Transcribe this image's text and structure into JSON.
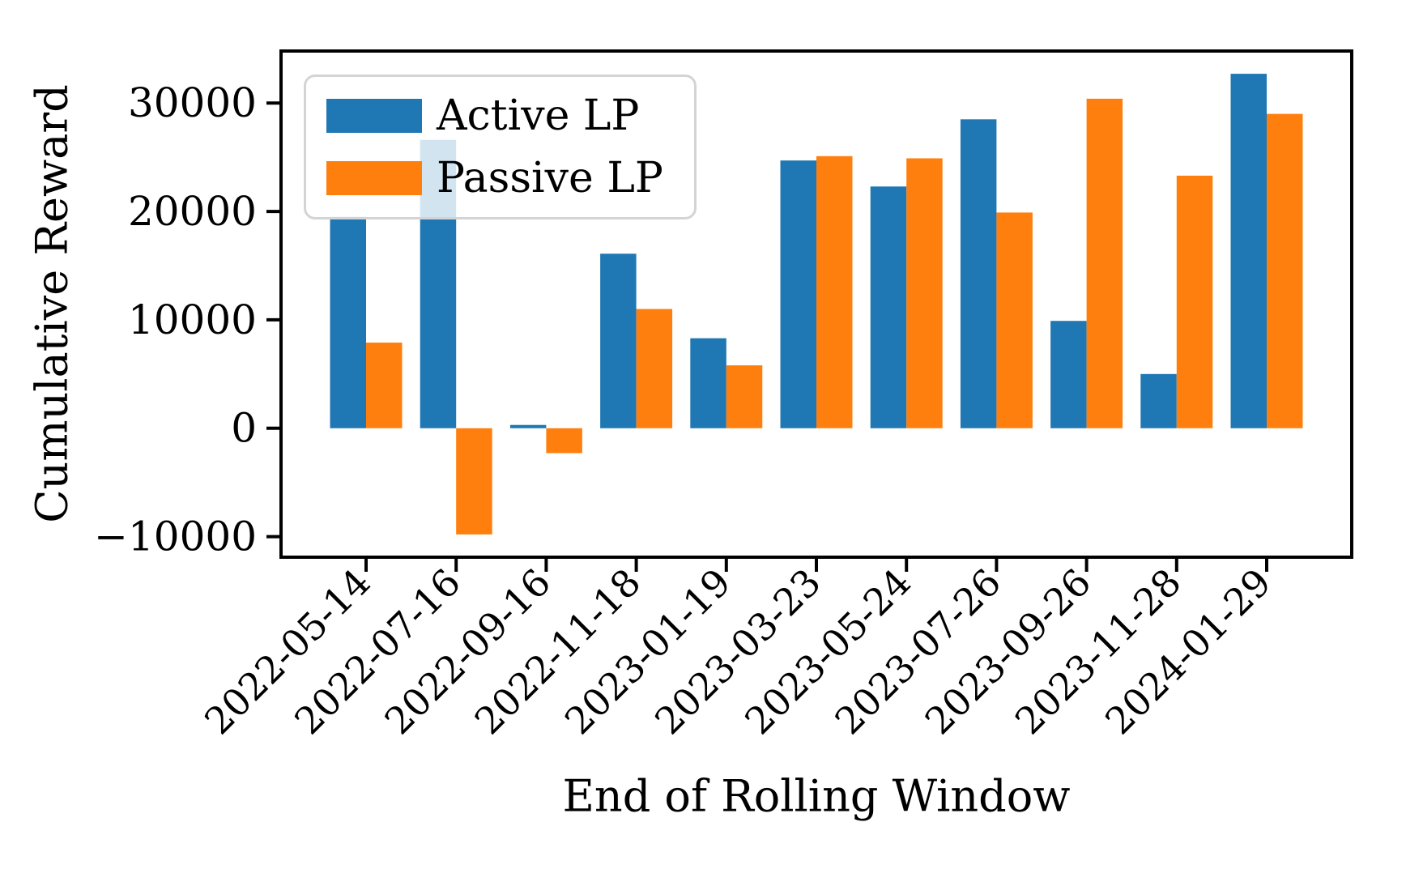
{
  "figure": {
    "background": "#ffffff",
    "spine_color": "#000000"
  },
  "chart_data": {
    "type": "bar",
    "title": "",
    "xlabel": "End of Rolling Window",
    "ylabel": "Cumulative Reward",
    "categories": [
      "2022-05-14",
      "2022-07-16",
      "2022-09-16",
      "2022-11-18",
      "2023-01-19",
      "2023-03-23",
      "2023-05-24",
      "2023-07-26",
      "2023-09-26",
      "2023-11-28",
      "2024-01-29"
    ],
    "series": [
      {
        "name": "Active LP",
        "color": "#1f77b4",
        "values": [
          19500,
          26600,
          300,
          16100,
          8300,
          24700,
          22300,
          28500,
          9900,
          5000,
          32700
        ]
      },
      {
        "name": "Passive LP",
        "color": "#ff7f0e",
        "values": [
          7900,
          -9800,
          -2300,
          11000,
          5800,
          25100,
          24900,
          19900,
          30400,
          23300,
          29000
        ]
      }
    ],
    "yticks": [
      -10000,
      0,
      10000,
      20000,
      30000
    ],
    "ylim": [
      -11900,
      34800
    ],
    "grid": false,
    "legend_position": "upper left",
    "x_tick_rotation": 45
  }
}
